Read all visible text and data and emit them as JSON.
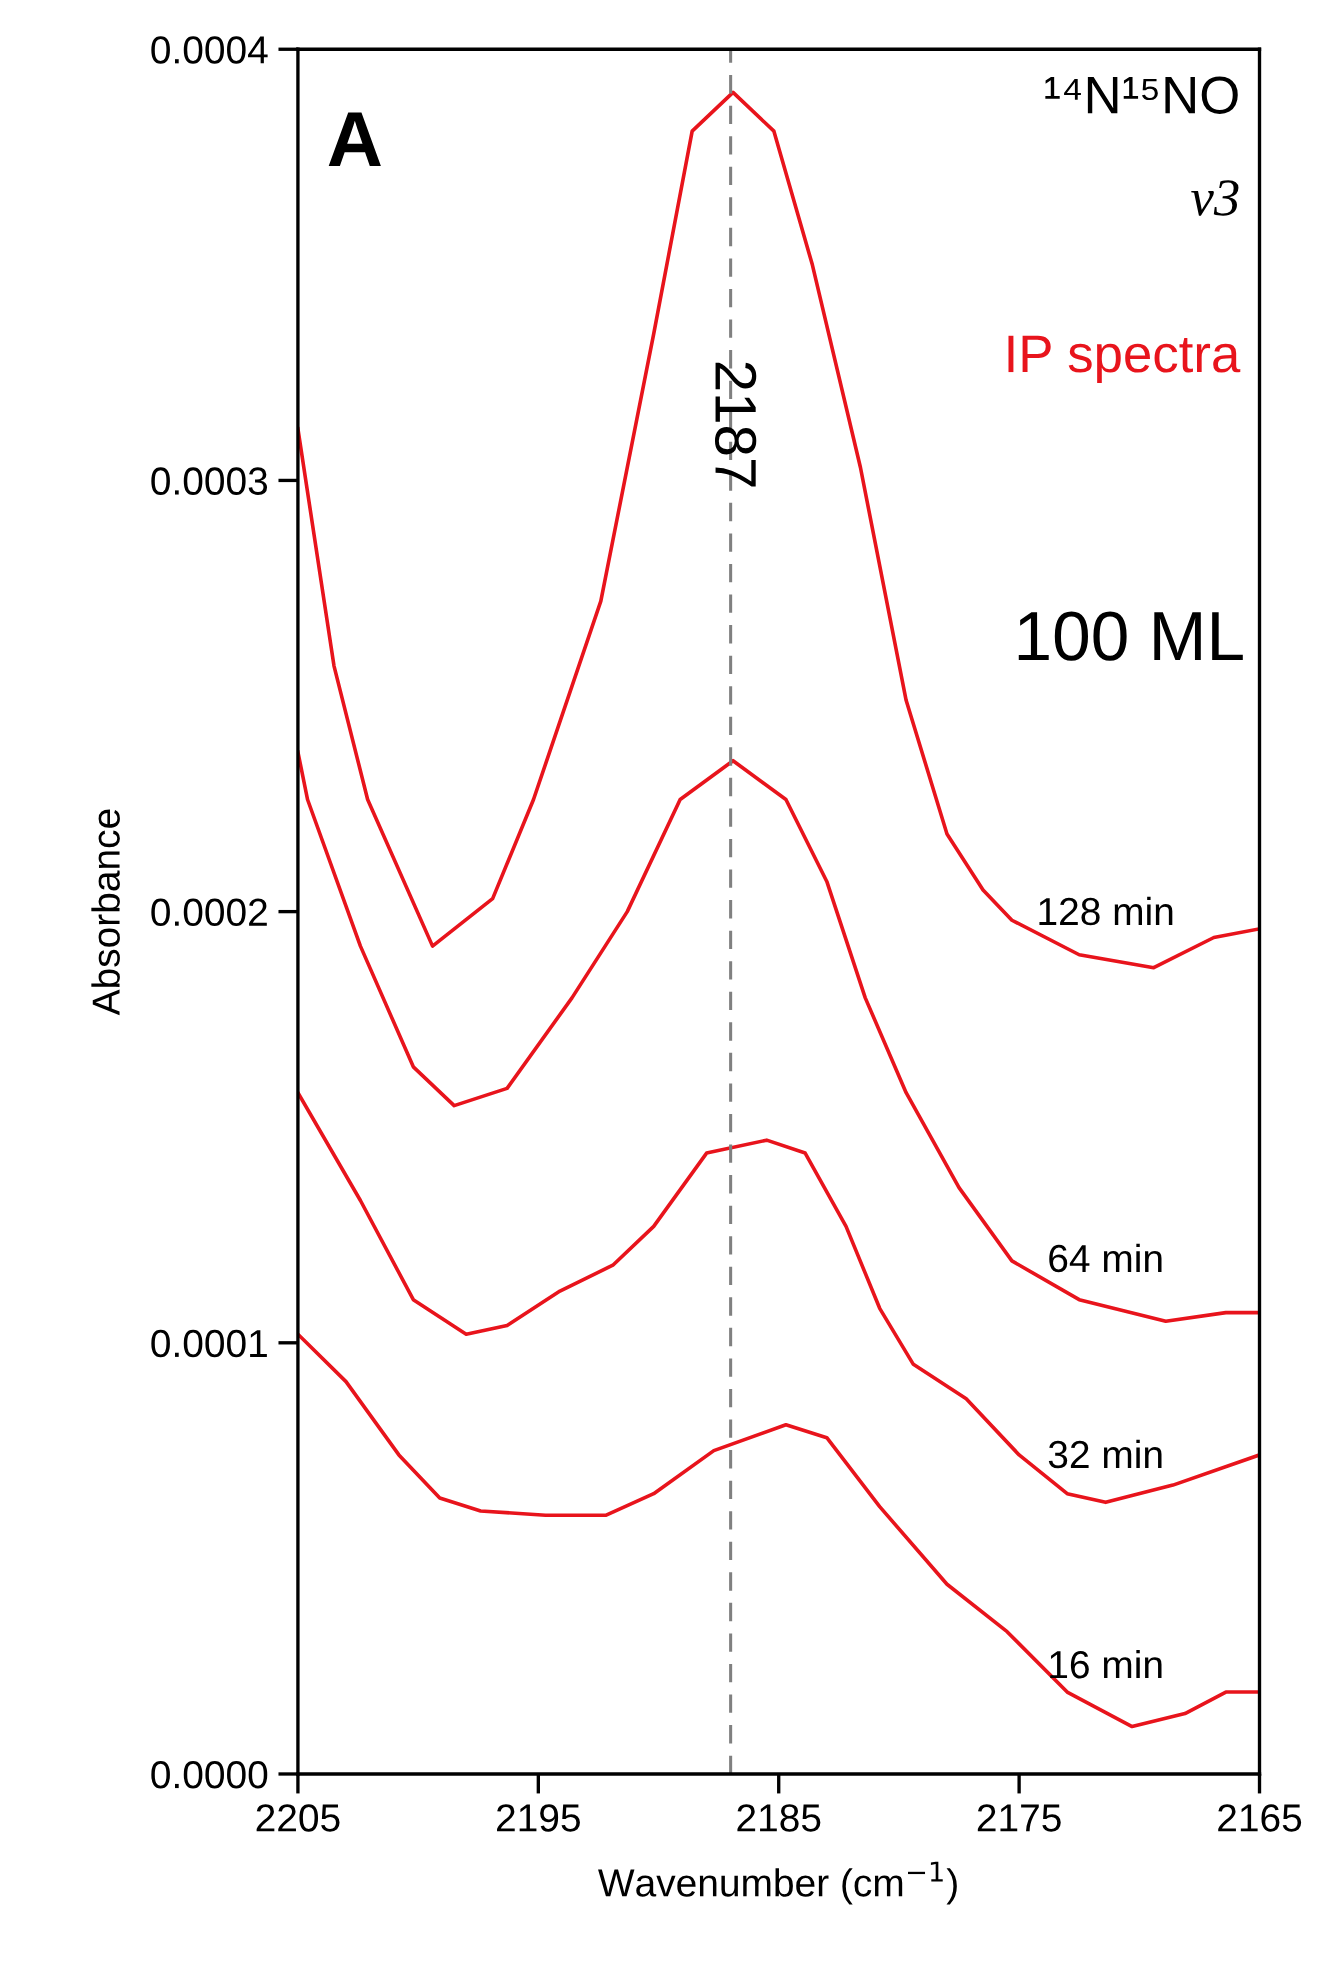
{
  "chart_data": {
    "type": "line",
    "xlabel": "Wavenumber (cm$^{−1}$)",
    "ylabel": "Absorbance",
    "xlim": [
      2205,
      2165
    ],
    "xticks": [
      2205,
      2195,
      2185,
      2175,
      2165
    ],
    "ylim": [
      0,
      0.0004
    ],
    "yticks": [
      {
        "value": 0,
        "label": "0.0000"
      },
      {
        "value": 0.0001,
        "label": "0.0001"
      },
      {
        "value": 0.0002,
        "label": "0.0002"
      },
      {
        "value": 0.0003,
        "label": "0.0003"
      },
      {
        "value": 0.0004,
        "label": "0.0004"
      }
    ],
    "grid": false,
    "legend": false,
    "line_style": "solid",
    "marker": "none",
    "ref_lines": [
      {
        "axis": "x",
        "value": 2187,
        "label": "2187",
        "color": "#808080",
        "line_style": "dashed"
      }
    ],
    "annotations": [
      "A",
      "¹⁴N¹⁵NO",
      "v3",
      "IP spectra",
      "100 ML"
    ],
    "series": [
      {
        "name": "128 min",
        "color": "#e8141c",
        "x": [
          2205,
          2203.5,
          2202.1,
          2199.4,
          2196.9,
          2195.2,
          2192.4,
          2190.2,
          2188.6,
          2186.9,
          2185.2,
          2183.6,
          2181.6,
          2179.7,
          2178.0,
          2176.5,
          2175.3,
          2172.5,
          2169.4,
          2166.9,
          2165
        ],
        "values": [
          0.000312,
          0.000257,
          0.000226,
          0.000192,
          0.000203,
          0.000226,
          0.000272,
          0.000334,
          0.000381,
          0.00039,
          0.000381,
          0.00035,
          0.000303,
          0.000249,
          0.000218,
          0.000205,
          0.000198,
          0.00019,
          0.000187,
          0.000194,
          0.000196
        ]
      },
      {
        "name": "64 min",
        "color": "#e8141c",
        "x": [
          2205,
          2204.6,
          2202.4,
          2200.2,
          2198.5,
          2196.3,
          2193.6,
          2191.3,
          2189.1,
          2186.9,
          2184.7,
          2183.0,
          2181.4,
          2179.7,
          2177.5,
          2175.3,
          2172.5,
          2168.9,
          2166.4,
          2165
        ],
        "values": [
          0.000237,
          0.000226,
          0.000192,
          0.000164,
          0.000155,
          0.000159,
          0.00018,
          0.0002,
          0.000226,
          0.000235,
          0.000226,
          0.000207,
          0.00018,
          0.000158,
          0.000136,
          0.000119,
          0.00011,
          0.000105,
          0.000107,
          0.000107
        ]
      },
      {
        "name": "32 min",
        "color": "#e8141c",
        "x": [
          2205,
          2202.4,
          2200.2,
          2198.0,
          2196.3,
          2194.1,
          2191.9,
          2190.2,
          2188.0,
          2185.5,
          2183.9,
          2182.2,
          2180.8,
          2179.4,
          2177.2,
          2175.0,
          2173.0,
          2171.4,
          2168.6,
          2165
        ],
        "values": [
          0.000158,
          0.000133,
          0.00011,
          0.000102,
          0.000104,
          0.000112,
          0.000118,
          0.000127,
          0.000144,
          0.000147,
          0.000144,
          0.000127,
          0.000108,
          9.5e-05,
          8.7e-05,
          7.4e-05,
          6.5e-05,
          6.3e-05,
          6.7e-05,
          7.4e-05
        ]
      },
      {
        "name": "16 min",
        "color": "#e8141c",
        "x": [
          2205,
          2203.0,
          2200.8,
          2199.1,
          2197.4,
          2194.7,
          2192.2,
          2190.2,
          2187.7,
          2184.7,
          2183.0,
          2180.8,
          2178.0,
          2175.5,
          2173.0,
          2170.3,
          2168.1,
          2166.4,
          2165
        ],
        "values": [
          0.000102,
          9.1e-05,
          7.4e-05,
          6.4e-05,
          6.1e-05,
          6e-05,
          6e-05,
          6.5e-05,
          7.5e-05,
          8.1e-05,
          7.8e-05,
          6.2e-05,
          4.4e-05,
          3.3e-05,
          1.9e-05,
          1.1e-05,
          1.4e-05,
          1.9e-05,
          1.9e-05
        ]
      }
    ]
  }
}
